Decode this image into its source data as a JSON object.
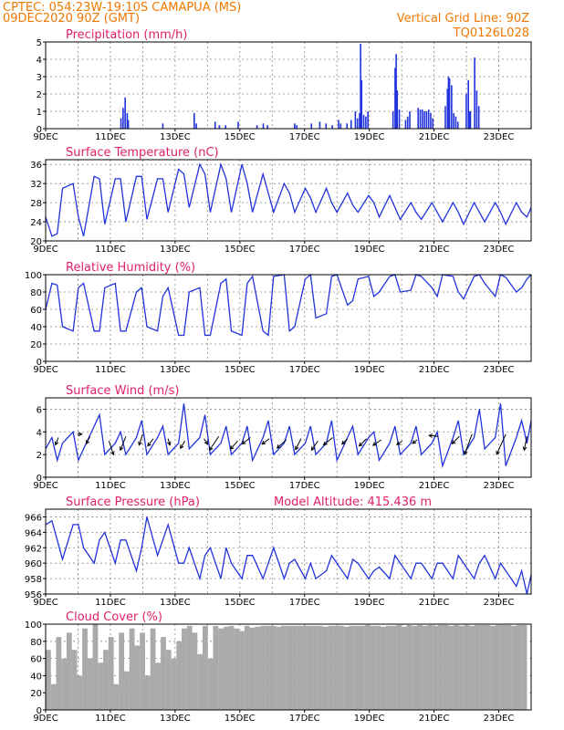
{
  "header": {
    "line1": "CPTEC:   054:23W-19:10S   CAMAPUA (MS)",
    "line2": "09DEC2020 90Z (GMT)",
    "right1": "Vertical Grid Line: 90Z",
    "right2": "TQ0126L028"
  },
  "x_ticks": [
    "9DEC",
    "11DEC",
    "13DEC",
    "15DEC",
    "17DEC",
    "19DEC",
    "21DEC",
    "23DEC"
  ],
  "colors": {
    "line": "#2233dd",
    "cloud": "#aaaaaa",
    "arrow": "#000000",
    "header": "#f07800",
    "title": "#e0206a"
  },
  "chart_data": [
    {
      "type": "bar",
      "title": "Precipitation (mm/h)",
      "ylim": [
        0,
        5
      ],
      "yticks": [
        "0",
        "1",
        "2",
        "3",
        "4",
        "5"
      ],
      "x_unit": "days since 9DEC 00Z",
      "spikes": [
        [
          3.6,
          0.6
        ],
        [
          3.7,
          1.2
        ],
        [
          3.8,
          1.8
        ],
        [
          3.9,
          0.9
        ],
        [
          3.95,
          0.5
        ],
        [
          5.6,
          0.3
        ],
        [
          7.1,
          0.9
        ],
        [
          7.2,
          0.3
        ],
        [
          8.1,
          0.4
        ],
        [
          8.3,
          0.2
        ],
        [
          8.6,
          0.2
        ],
        [
          9.2,
          0.4
        ],
        [
          10.1,
          0.2
        ],
        [
          10.4,
          0.3
        ],
        [
          10.6,
          0.2
        ],
        [
          11.9,
          0.3
        ],
        [
          12.0,
          0.2
        ],
        [
          12.7,
          0.3
        ],
        [
          13.1,
          0.4
        ],
        [
          13.4,
          0.3
        ],
        [
          13.7,
          0.2
        ],
        [
          14.0,
          0.5
        ],
        [
          14.1,
          0.3
        ],
        [
          14.4,
          0.3
        ],
        [
          14.6,
          0.5
        ],
        [
          14.8,
          1.0
        ],
        [
          14.9,
          0.6
        ],
        [
          15.0,
          0.9
        ],
        [
          15.05,
          4.9
        ],
        [
          15.1,
          2.8
        ],
        [
          15.2,
          0.8
        ],
        [
          15.3,
          0.7
        ],
        [
          15.4,
          1.0
        ],
        [
          16.6,
          1.0
        ],
        [
          16.7,
          3.5
        ],
        [
          16.75,
          4.3
        ],
        [
          16.8,
          2.2
        ],
        [
          16.9,
          1.1
        ],
        [
          17.2,
          0.5
        ],
        [
          17.3,
          0.7
        ],
        [
          17.4,
          1.0
        ],
        [
          17.8,
          1.2
        ],
        [
          17.9,
          1.1
        ],
        [
          18.0,
          1.1
        ],
        [
          18.1,
          1.0
        ],
        [
          18.2,
          1.0
        ],
        [
          18.3,
          1.1
        ],
        [
          18.4,
          0.9
        ],
        [
          18.5,
          0.6
        ],
        [
          19.1,
          1.3
        ],
        [
          19.2,
          2.3
        ],
        [
          19.25,
          3.0
        ],
        [
          19.3,
          2.9
        ],
        [
          19.4,
          2.5
        ],
        [
          19.5,
          0.9
        ],
        [
          19.6,
          0.7
        ],
        [
          19.7,
          0.4
        ],
        [
          20.1,
          2.0
        ],
        [
          20.2,
          2.8
        ],
        [
          20.25,
          1.0
        ],
        [
          20.3,
          1.0
        ],
        [
          20.5,
          4.1
        ],
        [
          20.6,
          2.2
        ],
        [
          20.7,
          1.3
        ]
      ]
    },
    {
      "type": "line",
      "title": "Surface Temperature (nC)",
      "ylim": [
        20,
        37
      ],
      "yticks": [
        "20",
        "24",
        "28",
        "32",
        "36"
      ],
      "x_unit": "days since 9DEC 00Z",
      "x": [
        0,
        0.3,
        0.55,
        0.8,
        1.3,
        1.55,
        1.8,
        2.3,
        2.55,
        2.8,
        3.3,
        3.55,
        3.8,
        4.3,
        4.55,
        4.8,
        5.3,
        5.55,
        5.8,
        6.3,
        6.55,
        6.8,
        7.3,
        7.55,
        7.8,
        8.3,
        8.55,
        8.8,
        9.3,
        9.55,
        9.8,
        10.3,
        10.55,
        10.8,
        11.3,
        11.55,
        11.8,
        12.3,
        12.55,
        12.8,
        13.3,
        13.55,
        13.8,
        14.3,
        14.55,
        14.8,
        15.3,
        15.55,
        15.8,
        16.3,
        16.55,
        16.8,
        17.3,
        17.55,
        17.8,
        18.3,
        18.55,
        18.8,
        19.3,
        19.55,
        19.8,
        20.3,
        20.55,
        20.8,
        21.3,
        21.55,
        21.8,
        22.3,
        22.55,
        22.8,
        23.0
      ],
      "values": [
        25,
        21,
        21.5,
        31,
        32,
        25,
        21,
        33.5,
        33,
        23.5,
        33,
        33,
        24,
        33.5,
        33.5,
        24.5,
        33,
        33,
        26,
        35,
        34,
        27,
        36,
        34,
        26,
        36,
        33,
        26,
        36,
        32,
        26,
        34,
        30,
        26,
        32,
        30,
        26,
        31,
        29,
        26,
        31,
        28,
        26,
        30,
        27.5,
        26,
        29.5,
        28,
        25,
        29.5,
        27,
        24.5,
        28,
        26,
        24.5,
        28,
        26,
        24,
        28,
        26,
        23.5,
        28,
        26,
        24,
        28,
        26,
        23.5,
        28,
        26,
        25,
        27
      ]
    },
    {
      "type": "line",
      "title": "Relative Humidity (%)",
      "ylim": [
        0,
        100
      ],
      "yticks": [
        "0",
        "20",
        "40",
        "60",
        "80",
        "100"
      ],
      "x_unit": "days since 9DEC 00Z",
      "x": [
        0,
        0.3,
        0.55,
        0.8,
        1.3,
        1.55,
        1.8,
        2.3,
        2.55,
        2.8,
        3.3,
        3.55,
        3.8,
        4.3,
        4.55,
        4.8,
        5.3,
        5.55,
        5.8,
        6.3,
        6.55,
        6.8,
        7.3,
        7.55,
        7.8,
        8.3,
        8.55,
        8.8,
        9.3,
        9.55,
        9.8,
        10.3,
        10.55,
        10.8,
        11.3,
        11.55,
        11.8,
        12.3,
        12.55,
        12.8,
        13.3,
        13.55,
        13.8,
        14.3,
        14.55,
        14.8,
        15.3,
        15.55,
        15.8,
        16.3,
        16.55,
        16.8,
        17.3,
        17.55,
        17.8,
        18.3,
        18.55,
        18.8,
        19.3,
        19.55,
        19.8,
        20.3,
        20.55,
        20.8,
        21.3,
        21.55,
        21.8,
        22.3,
        22.55,
        22.8,
        23.0
      ],
      "values": [
        60,
        90,
        88,
        40,
        35,
        85,
        90,
        35,
        35,
        85,
        90,
        35,
        35,
        80,
        85,
        40,
        35,
        75,
        85,
        30,
        30,
        80,
        85,
        30,
        30,
        90,
        95,
        35,
        30,
        90,
        98,
        35,
        30,
        98,
        100,
        35,
        40,
        95,
        100,
        50,
        55,
        98,
        100,
        65,
        70,
        95,
        98,
        75,
        80,
        98,
        100,
        80,
        82,
        100,
        98,
        85,
        75,
        100,
        98,
        80,
        72,
        98,
        100,
        90,
        75,
        100,
        97,
        80,
        85,
        95,
        100
      ]
    },
    {
      "type": "line",
      "title": "Surface Wind (m/s)",
      "ylim": [
        0,
        7
      ],
      "yticks": [
        "0",
        "2",
        "4",
        "6"
      ],
      "x_unit": "days since 9DEC 00Z",
      "x": [
        0,
        0.3,
        0.55,
        0.8,
        1.3,
        1.55,
        1.8,
        2.3,
        2.55,
        2.8,
        3.3,
        3.55,
        3.8,
        4.3,
        4.55,
        4.8,
        5.3,
        5.55,
        5.8,
        6.3,
        6.55,
        6.8,
        7.3,
        7.55,
        7.8,
        8.3,
        8.55,
        8.8,
        9.3,
        9.55,
        9.8,
        10.3,
        10.55,
        10.8,
        11.3,
        11.55,
        11.8,
        12.3,
        12.55,
        12.8,
        13.3,
        13.55,
        13.8,
        14.3,
        14.55,
        14.8,
        15.3,
        15.55,
        15.8,
        16.3,
        16.55,
        16.8,
        17.3,
        17.55,
        17.8,
        18.3,
        18.55,
        18.8,
        19.3,
        19.55,
        19.8,
        20.3,
        20.55,
        20.8,
        21.3,
        21.55,
        21.8,
        22.3,
        22.55,
        22.8,
        23.0
      ],
      "values": [
        2.5,
        3.5,
        1.5,
        3.0,
        4.0,
        1.5,
        2.5,
        4.5,
        5.5,
        2.0,
        3.0,
        4.0,
        2.0,
        3.5,
        5.0,
        2.0,
        3.5,
        4.5,
        2.0,
        3.0,
        6.5,
        2.5,
        3.5,
        5.5,
        2.0,
        3.0,
        4.5,
        2.0,
        3.0,
        4.5,
        1.5,
        3.5,
        5.0,
        2.0,
        3.0,
        4.5,
        2.0,
        3.0,
        4.5,
        2.0,
        3.0,
        5.0,
        1.5,
        3.5,
        4.5,
        2.0,
        3.5,
        4.0,
        1.5,
        3.0,
        4.5,
        2.0,
        3.0,
        4.5,
        2.0,
        3.0,
        4.0,
        1.0,
        3.5,
        5.0,
        2.0,
        3.5,
        6.0,
        2.5,
        3.5,
        6.5,
        1.0,
        3.5,
        5.0,
        3.0,
        5.0
      ],
      "arrows": [
        [
          0.6,
          3.5,
          -0.3,
          -0.8
        ],
        [
          1.5,
          3.8,
          0.5,
          0
        ],
        [
          2.1,
          3.6,
          -0.4,
          -0.8
        ],
        [
          3.0,
          3.2,
          0.5,
          -1.5
        ],
        [
          3.8,
          3.6,
          -0.6,
          -1.5
        ],
        [
          4.6,
          3.8,
          -0.4,
          -1.2
        ],
        [
          5.1,
          3.4,
          -0.6,
          -0.8
        ],
        [
          5.8,
          3.4,
          0.2,
          -0.7
        ],
        [
          6.6,
          3.2,
          -0.5,
          -0.8
        ],
        [
          7.5,
          3.4,
          0.4,
          -0.6
        ],
        [
          8.2,
          3.6,
          -1.0,
          -1.5
        ],
        [
          9.1,
          3.2,
          -0.8,
          -0.9
        ],
        [
          9.7,
          3.5,
          -0.9,
          -0.7
        ],
        [
          10.6,
          3.4,
          -0.8,
          -0.6
        ],
        [
          11.4,
          3.3,
          -1.0,
          -0.9
        ],
        [
          12.1,
          3.4,
          -0.6,
          -1.2
        ],
        [
          12.9,
          3.2,
          -0.7,
          -1.0
        ],
        [
          13.6,
          3.5,
          -1.0,
          -0.8
        ],
        [
          14.3,
          3.4,
          -0.6,
          -0.6
        ],
        [
          15.2,
          3.4,
          -0.8,
          -0.8
        ],
        [
          15.9,
          3.3,
          -0.9,
          -0.6
        ],
        [
          16.9,
          3.2,
          -0.6,
          -0.4
        ],
        [
          17.6,
          3.3,
          -0.5,
          -0.4
        ],
        [
          18.6,
          3.6,
          -1.0,
          0.1
        ],
        [
          19.6,
          3.6,
          -0.8,
          -0.8
        ],
        [
          20.2,
          3.8,
          -0.8,
          -2.2
        ],
        [
          21.8,
          3.8,
          -1.0,
          -2.2
        ],
        [
          22.8,
          3.6,
          -0.3,
          -1.5
        ]
      ]
    },
    {
      "type": "line",
      "title": "Surface Pressure (hPa)",
      "annotation": "Model Altitude: 415.436  m",
      "ylim": [
        956,
        967
      ],
      "yticks": [
        "956",
        "958",
        "960",
        "962",
        "964",
        "966"
      ],
      "x_unit": "days since 9DEC 00Z",
      "x": [
        0,
        0.3,
        0.55,
        0.8,
        1.3,
        1.55,
        1.8,
        2.3,
        2.55,
        2.8,
        3.3,
        3.55,
        3.8,
        4.3,
        4.55,
        4.8,
        5.3,
        5.55,
        5.8,
        6.3,
        6.55,
        6.8,
        7.3,
        7.55,
        7.8,
        8.3,
        8.55,
        8.8,
        9.3,
        9.55,
        9.8,
        10.3,
        10.55,
        10.8,
        11.3,
        11.55,
        11.8,
        12.3,
        12.55,
        12.8,
        13.3,
        13.55,
        13.8,
        14.3,
        14.55,
        14.8,
        15.3,
        15.55,
        15.8,
        16.3,
        16.55,
        16.8,
        17.3,
        17.55,
        17.8,
        18.3,
        18.55,
        18.8,
        19.3,
        19.55,
        19.8,
        20.3,
        20.55,
        20.8,
        21.3,
        21.55,
        21.8,
        22.3,
        22.55,
        22.8,
        23.0
      ],
      "values": [
        965,
        965.5,
        963,
        960.5,
        965,
        965,
        962,
        960,
        963,
        964,
        960,
        963,
        963,
        959,
        962,
        966,
        961,
        963,
        965,
        960,
        960,
        962,
        958,
        961,
        962,
        958,
        962,
        960,
        958,
        961,
        961,
        958,
        960,
        962,
        958,
        960,
        960.5,
        958,
        960,
        958,
        959,
        961,
        960,
        958,
        960.5,
        960,
        958,
        959,
        959.5,
        958,
        961,
        960,
        958,
        960,
        960,
        958,
        960,
        960,
        958,
        961,
        960,
        958,
        960,
        961,
        958,
        960,
        959,
        957,
        959,
        956,
        958.5
      ]
    },
    {
      "type": "bar",
      "title": "Cloud Cover (%)",
      "ylim": [
        0,
        100
      ],
      "yticks": [
        "0",
        "20",
        "40",
        "60",
        "80",
        "100"
      ],
      "x_unit": "days since 9DEC 00Z",
      "x": [
        0,
        0.25,
        0.5,
        0.75,
        1.0,
        1.25,
        1.5,
        1.75,
        2.0,
        2.25,
        2.5,
        2.75,
        3.0,
        3.25,
        3.5,
        3.75,
        4.0,
        4.25,
        4.5,
        4.75,
        5.0,
        5.25,
        5.5,
        5.75,
        6.0,
        6.25,
        6.5,
        6.75,
        7.0,
        7.25,
        7.5,
        7.75,
        8.0,
        8.25,
        8.5,
        8.75,
        9.0,
        9.25,
        9.5,
        9.75,
        10.0,
        10.25,
        10.5,
        10.75,
        11.0,
        11.25,
        11.5,
        11.75,
        12.0,
        12.25,
        12.5,
        12.75,
        13.0,
        13.25,
        13.5,
        13.75,
        14.0,
        14.25,
        14.5,
        14.75,
        15.0,
        15.25,
        15.5,
        15.75,
        16.0,
        16.25,
        16.5,
        16.75,
        17.0,
        17.25,
        17.5,
        17.75,
        18.0,
        18.25,
        18.5,
        18.75,
        19.0,
        19.25,
        19.5,
        19.75,
        20.0,
        20.25,
        20.5,
        20.75,
        21.0,
        21.25,
        21.5,
        21.75,
        22.0,
        22.25,
        22.5,
        22.75
      ],
      "values": [
        70,
        30,
        85,
        60,
        90,
        70,
        40,
        95,
        60,
        100,
        55,
        70,
        85,
        30,
        90,
        45,
        95,
        75,
        90,
        40,
        95,
        55,
        85,
        70,
        60,
        80,
        95,
        98,
        90,
        65,
        98,
        60,
        98,
        95,
        97,
        98,
        95,
        92,
        98,
        96,
        97,
        98,
        98,
        98,
        97,
        98,
        98,
        98,
        98,
        98,
        98,
        98,
        98,
        97,
        98,
        98,
        98,
        97,
        98,
        98,
        98,
        99,
        98,
        98,
        97,
        98,
        98,
        99,
        97,
        99,
        98,
        99,
        98,
        99,
        98,
        99,
        99,
        98,
        99,
        98,
        99,
        98,
        99,
        99,
        99,
        98,
        99,
        99,
        99,
        98,
        99,
        99
      ]
    }
  ]
}
